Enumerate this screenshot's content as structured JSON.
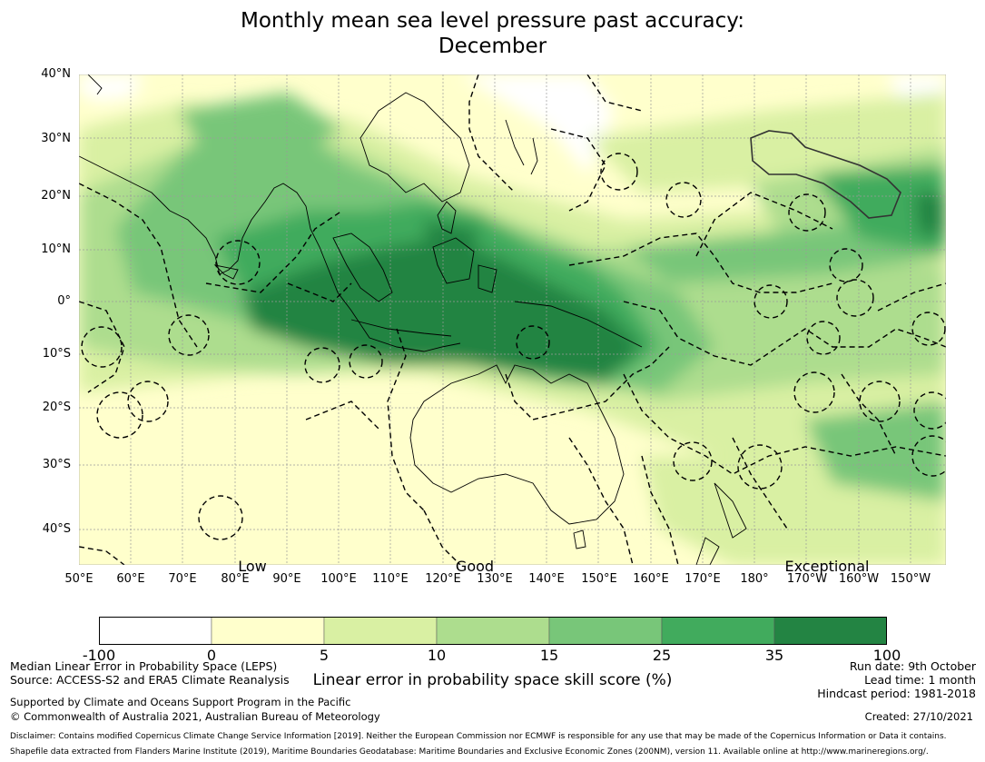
{
  "title": {
    "line1": "Monthly mean sea level pressure past accuracy:",
    "line2": "December"
  },
  "map": {
    "lat_labels": [
      "40°N",
      "30°N",
      "20°N",
      "10°N",
      "0°",
      "10°S",
      "20°S",
      "30°S",
      "40°S"
    ],
    "lon_labels": [
      "50°E",
      "60°E",
      "70°E",
      "80°E",
      "90°E",
      "100°E",
      "110°E",
      "120°E",
      "130°E",
      "140°E",
      "150°E",
      "160°E",
      "170°E",
      "180°",
      "170°W",
      "160°W",
      "150°W"
    ],
    "categories": [
      "Low",
      "Good",
      "Exceptional"
    ]
  },
  "colorbar": {
    "ticks": [
      "-100",
      "0",
      "5",
      "10",
      "15",
      "25",
      "35",
      "100"
    ],
    "colors": [
      "#ffffff",
      "#ffffcc",
      "#d9f0a3",
      "#addd8e",
      "#78c679",
      "#41ab5d",
      "#238443"
    ],
    "label": "Linear error in probability space skill score (%)"
  },
  "footer": {
    "left1": "Median Linear Error in Probability Space (LEPS)",
    "left2": "Source: ACCESS-S2 and ERA5 Climate Reanalysis",
    "left3": "Supported by Climate and Oceans Support Program in the Pacific",
    "left4": "© Commonwealth of Australia 2021, Australian Bureau of Meteorology",
    "right1": "Run date: 9th October",
    "right2": "Lead time: 1 month",
    "right3": "Hindcast period: 1981-2018",
    "created": "Created: 27/10/2021",
    "disclaimer1": "Disclaimer: Contains modified Copernicus Climate Change Service Information [2019]. Neither the European Commission nor ECMWF is responsible for any use that may be made of the Copernicus Information or Data it contains.",
    "disclaimer2": "Shapefile data extracted from Flanders Marine Institute (2019), Maritime Boundaries Geodatabase: Maritime Boundaries and Exclusive Economic Zones (200NM), version 11. Available online at http://www.marineregions.org/."
  }
}
